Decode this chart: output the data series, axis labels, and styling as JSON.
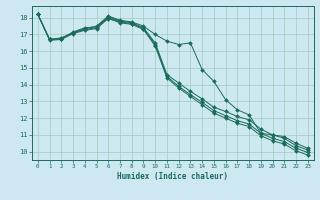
{
  "xlabel": "Humidex (Indice chaleur)",
  "bg_color": "#cde8f0",
  "grid_color": "#a0ccbb",
  "line_color": "#1a6b5a",
  "xlim": [
    -0.5,
    23.5
  ],
  "ylim": [
    9.5,
    18.7
  ],
  "xticks": [
    0,
    1,
    2,
    3,
    4,
    5,
    6,
    7,
    8,
    9,
    10,
    11,
    12,
    13,
    14,
    15,
    16,
    17,
    18,
    19,
    20,
    21,
    22,
    23
  ],
  "yticks": [
    10,
    11,
    12,
    13,
    14,
    15,
    16,
    17,
    18
  ],
  "series": [
    {
      "x": [
        0,
        1,
        2,
        3,
        4,
        5,
        6,
        7,
        8,
        9,
        10,
        11,
        12,
        13,
        14,
        15,
        16,
        17,
        18,
        19,
        20,
        21,
        22,
        23
      ],
      "y": [
        18.2,
        16.7,
        16.8,
        17.1,
        17.35,
        17.5,
        18.1,
        17.85,
        17.75,
        17.5,
        17.0,
        16.6,
        16.4,
        16.5,
        14.9,
        14.2,
        13.1,
        12.5,
        12.2,
        11.1,
        11.0,
        10.9,
        10.5,
        10.2
      ]
    },
    {
      "x": [
        0,
        1,
        2,
        3,
        4,
        5,
        6,
        7,
        8,
        9,
        10,
        11,
        12,
        13,
        14,
        15,
        16,
        17,
        18,
        19,
        20,
        21,
        22,
        23
      ],
      "y": [
        18.2,
        16.7,
        16.75,
        17.15,
        17.4,
        17.45,
        18.05,
        17.8,
        17.7,
        17.4,
        16.5,
        14.6,
        14.1,
        13.6,
        13.15,
        12.65,
        12.4,
        12.1,
        11.9,
        11.35,
        11.0,
        10.8,
        10.35,
        10.1
      ]
    },
    {
      "x": [
        0,
        1,
        2,
        3,
        4,
        5,
        6,
        7,
        8,
        9,
        10,
        11,
        12,
        13,
        14,
        15,
        16,
        17,
        18,
        19,
        20,
        21,
        22,
        23
      ],
      "y": [
        18.2,
        16.7,
        16.75,
        17.1,
        17.3,
        17.4,
        18.0,
        17.75,
        17.65,
        17.35,
        16.4,
        14.5,
        13.9,
        13.4,
        12.95,
        12.45,
        12.15,
        11.85,
        11.65,
        11.1,
        10.8,
        10.6,
        10.2,
        9.95
      ]
    },
    {
      "x": [
        0,
        1,
        2,
        3,
        4,
        5,
        6,
        7,
        8,
        9,
        10,
        11,
        12,
        13,
        14,
        15,
        16,
        17,
        18,
        19,
        20,
        21,
        22,
        23
      ],
      "y": [
        18.2,
        16.65,
        16.7,
        17.05,
        17.25,
        17.35,
        17.95,
        17.7,
        17.6,
        17.3,
        16.3,
        14.4,
        13.8,
        13.3,
        12.8,
        12.3,
        12.0,
        11.7,
        11.5,
        10.95,
        10.65,
        10.45,
        10.05,
        9.8
      ]
    }
  ]
}
